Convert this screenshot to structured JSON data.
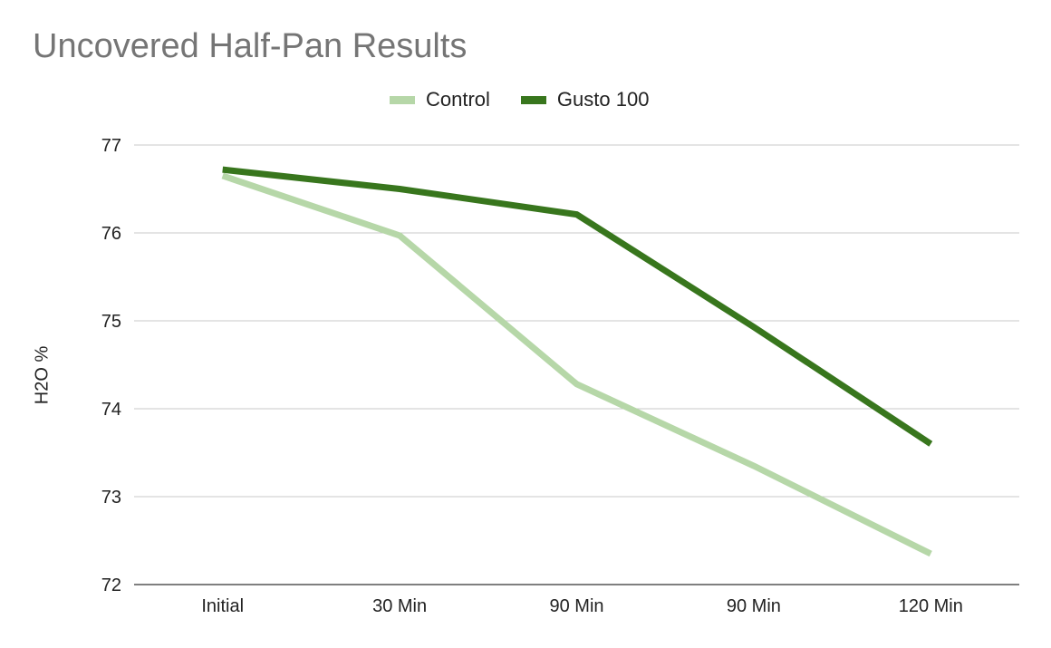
{
  "chart_data": {
    "type": "line",
    "title": "Uncovered Half-Pan Results",
    "xlabel": "",
    "ylabel": "H2O %",
    "categories": [
      "Initial",
      "30 Min",
      "90 Min",
      "90 Min",
      "120 Min"
    ],
    "y_ticks": [
      "72",
      "73",
      "74",
      "75",
      "76",
      "77"
    ],
    "ylim": [
      72,
      77
    ],
    "grid": true,
    "legend_position": "top",
    "series": [
      {
        "name": "Control",
        "color": "#b6d7a8",
        "values": [
          76.65,
          75.97,
          74.28,
          73.35,
          72.35
        ]
      },
      {
        "name": "Gusto 100",
        "color": "#38761d",
        "values": [
          76.72,
          76.5,
          76.21,
          74.93,
          73.6
        ]
      }
    ]
  }
}
